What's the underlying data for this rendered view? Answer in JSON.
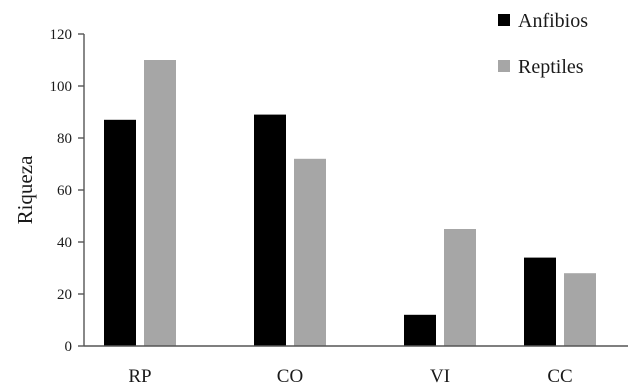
{
  "chart_data": {
    "type": "bar",
    "categories": [
      "RP",
      "CO",
      "VI",
      "CC"
    ],
    "series": [
      {
        "name": "Anfibios",
        "values": [
          87,
          89,
          12,
          34
        ],
        "color": "#000000"
      },
      {
        "name": "Reptiles",
        "values": [
          110,
          72,
          45,
          28
        ],
        "color": "#a6a6a6"
      }
    ],
    "title": "",
    "xlabel": "",
    "ylabel": "Riqueza",
    "ylim": [
      0,
      120
    ],
    "yticks": [
      0,
      20,
      40,
      60,
      80,
      100,
      120
    ],
    "grid": false,
    "legend_position": "top-right"
  }
}
